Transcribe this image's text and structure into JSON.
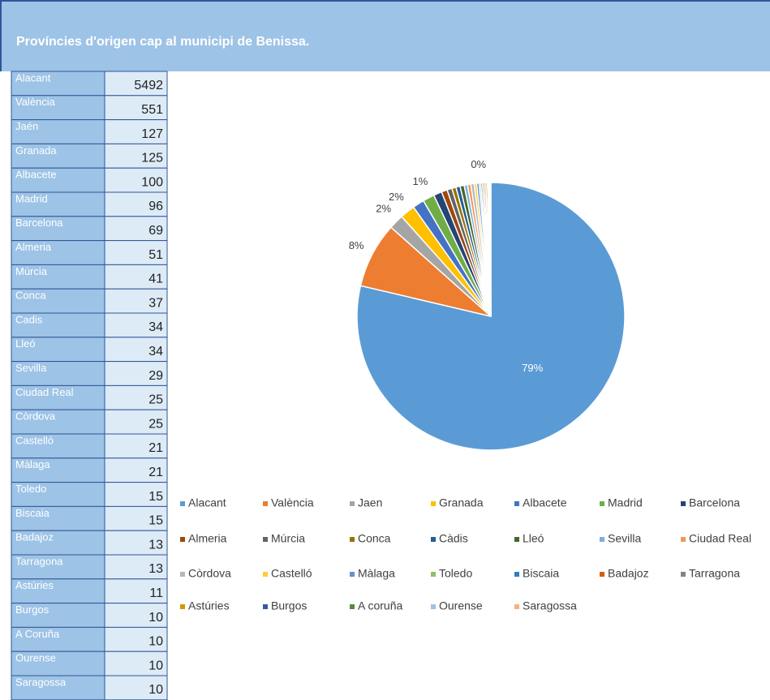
{
  "header": {
    "title": "Províncies d'origen cap al municipi de Benissa."
  },
  "table": {
    "rows": [
      [
        "Alacant",
        "5492"
      ],
      [
        "València",
        "551"
      ],
      [
        "Jaén",
        "127"
      ],
      [
        "Granada",
        "125"
      ],
      [
        "Albacete",
        "100"
      ],
      [
        "Madrid",
        "96"
      ],
      [
        "Barcelona",
        "69"
      ],
      [
        "Almeria",
        "51"
      ],
      [
        "Múrcia",
        "41"
      ],
      [
        "Conca",
        "37"
      ],
      [
        "Cadis",
        "34"
      ],
      [
        "Lleó",
        "34"
      ],
      [
        "Sevilla",
        "29"
      ],
      [
        "Ciudad Real",
        "25"
      ],
      [
        "Còrdova",
        "25"
      ],
      [
        "Castelló",
        "21"
      ],
      [
        "Màlaga",
        "21"
      ],
      [
        "Toledo",
        "15"
      ],
      [
        "Biscaia",
        "15"
      ],
      [
        "Badajoz",
        "13"
      ],
      [
        "Tarragona",
        "13"
      ],
      [
        "Astúries",
        "11"
      ],
      [
        "Burgos",
        "10"
      ],
      [
        "A Coruña",
        "10"
      ],
      [
        "Ourense",
        "10"
      ],
      [
        "Saragossa",
        "10"
      ]
    ]
  },
  "chart_data": {
    "type": "pie",
    "categories": [
      "Alacant",
      "València",
      "Jaen",
      "Granada",
      "Albacete",
      "Madrid",
      "Barcelona",
      "Almeria",
      "Múrcia",
      "Conca",
      "Càdis",
      "Lleó",
      "Sevilla",
      "Ciudad Real",
      "Còrdova",
      "Castelló",
      "Màlaga",
      "Toledo",
      "Biscaia",
      "Badajoz",
      "Tarragona",
      "Astúries",
      "Burgos",
      "A coruña",
      "Ourense",
      "Saragossa"
    ],
    "values": [
      78.6,
      7.9,
      1.8,
      1.8,
      1.4,
      1.4,
      1.0,
      0.7,
      0.6,
      0.5,
      0.5,
      0.5,
      0.4,
      0.4,
      0.4,
      0.3,
      0.3,
      0.2,
      0.2,
      0.2,
      0.2,
      0.2,
      0.1,
      0.1,
      0.1,
      0.1
    ],
    "value_labels": [
      "79%",
      "8%",
      "2%",
      "2%",
      null,
      "1%",
      null,
      null,
      null,
      null,
      null,
      null,
      null,
      null,
      null,
      null,
      null,
      "0%",
      null,
      null,
      null,
      null,
      null,
      null,
      null,
      null
    ],
    "colors": [
      "#5b9bd5",
      "#ed7d31",
      "#a5a5a5",
      "#ffc000",
      "#4472c4",
      "#70ad47",
      "#264478",
      "#9e480e",
      "#636363",
      "#997300",
      "#255e91",
      "#43682b",
      "#7cafdd",
      "#f1975a",
      "#b7b7b7",
      "#ffcd33",
      "#698ed0",
      "#8cc168",
      "#327dc2",
      "#d26012",
      "#848484",
      "#cc9a00",
      "#335aa1",
      "#5a8a39",
      "#9dc3e6",
      "#f4b183"
    ],
    "legend": "bottom"
  }
}
